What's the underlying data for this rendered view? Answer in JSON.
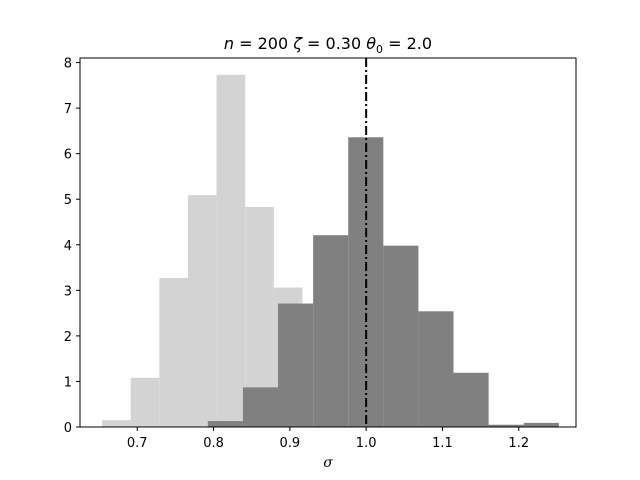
{
  "chart_data": {
    "type": "bar",
    "title": "n = 200 ζ = 0.30 θ₀ = 2.0",
    "title_parts": {
      "n_sym": "n",
      "n_val": " = 200 ",
      "zeta_sym": "ζ",
      "zeta_val": " = 0.30 ",
      "theta_sym": "θ",
      "theta_sub": "0",
      "theta_val": " = 2.0"
    },
    "xlabel": "σ",
    "ylabel": "",
    "xlim": [
      0.625,
      1.275
    ],
    "ylim": [
      0,
      8.1
    ],
    "x_ticks": [
      0.7,
      0.8,
      0.9,
      1.0,
      1.1,
      1.2
    ],
    "x_tick_labels": [
      "0.7",
      "0.8",
      "0.9",
      "1.0",
      "1.1",
      "1.2"
    ],
    "y_ticks": [
      0,
      1,
      2,
      3,
      4,
      5,
      6,
      7,
      8
    ],
    "y_tick_labels": [
      "0",
      "1",
      "2",
      "3",
      "4",
      "5",
      "6",
      "7",
      "8"
    ],
    "grid": false,
    "reference_line": {
      "x": 1.0,
      "style": "dash-dot",
      "color": "#000000"
    },
    "series": [
      {
        "color": "#d3d3d3",
        "bin_edges": [
          0.654,
          0.6915,
          0.729,
          0.7665,
          0.804,
          0.8415,
          0.879,
          0.9165
        ],
        "values": [
          0.15,
          1.08,
          3.27,
          5.09,
          7.73,
          4.83,
          3.06
        ]
      },
      {
        "color": "#808080",
        "bin_edges": [
          0.7925,
          0.8385,
          0.8845,
          0.9305,
          0.9765,
          1.0225,
          1.0685,
          1.1145,
          1.1605,
          1.2065,
          1.2525
        ],
        "values": [
          0.13,
          0.87,
          2.71,
          4.21,
          6.36,
          3.98,
          2.54,
          1.19,
          0.05,
          0.09
        ]
      }
    ]
  }
}
